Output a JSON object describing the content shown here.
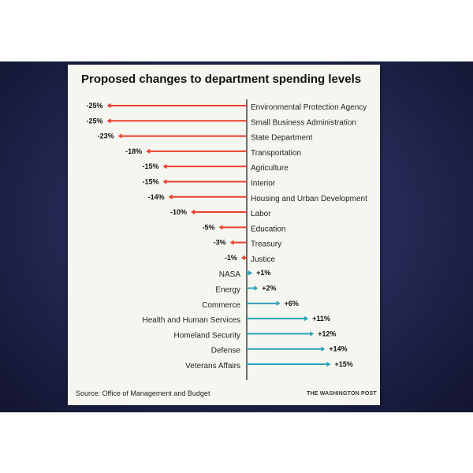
{
  "colors": {
    "negative": "#e8412c",
    "positive": "#2aa1b9",
    "axis": "#222222",
    "text": "#222222"
  },
  "chart_data": {
    "type": "bar",
    "orientation": "diverging-horizontal",
    "title": "Proposed changes to department spending levels",
    "source": "Source: Office of Management and Budget",
    "credit": "THE WASHINGTON POST",
    "categories": [
      "Environmental Protection Agency",
      "Small Business Administration",
      "State Department",
      "Transportation",
      "Agriculture",
      "Interior",
      "Housing and Urban Development",
      "Labor",
      "Education",
      "Treasury",
      "Justice",
      "NASA",
      "Energy",
      "Commerce",
      "Health and Human Services",
      "Homeland Security",
      "Defense",
      "Veterans Affairs"
    ],
    "values": [
      -25,
      -25,
      -23,
      -18,
      -15,
      -15,
      -14,
      -10,
      -5,
      -3,
      -1,
      1,
      2,
      6,
      11,
      12,
      14,
      15
    ],
    "value_labels": [
      "-25%",
      "-25%",
      "-23%",
      "-18%",
      "-15%",
      "-15%",
      "-14%",
      "-10%",
      "-5%",
      "-3%",
      "-1%",
      "+1%",
      "+2%",
      "+6%",
      "+11%",
      "+12%",
      "+14%",
      "+15%"
    ]
  }
}
